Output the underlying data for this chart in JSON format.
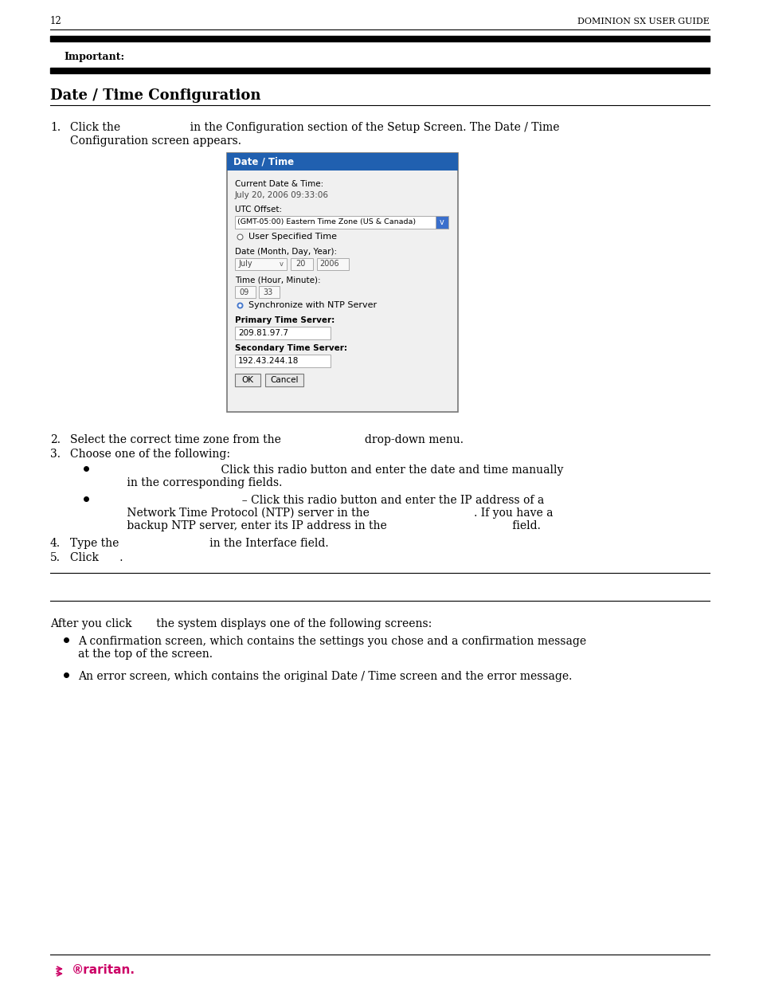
{
  "page_number": "12",
  "header_right": "DOMINION SX USER GUIDE",
  "important_label": "Important:",
  "section_title": "Date / Time Configuration",
  "step1_line1": "Click the                    in the Configuration section of the Setup Screen. The Date / Time",
  "step1_line2": "Configuration screen appears.",
  "dialog_title": "Date / Time",
  "dialog_title_bg": "#2060b0",
  "dialog_title_color": "#ffffff",
  "current_date_label": "Current Date & Time:",
  "current_date_value": "July 20, 2006 09:33:06",
  "utc_label": "UTC Offset:",
  "utc_value": "(GMT-05:00) Eastern Time Zone (US & Canada)",
  "radio1_label": "User Specified Time",
  "date_label": "Date (Month, Day, Year):",
  "date_month": "July",
  "date_day": "20",
  "date_year": "2006",
  "time_label": "Time (Hour, Minute):",
  "time_hour": "09",
  "time_minute": "33",
  "radio2_label": "Synchronize with NTP Server",
  "primary_label": "Primary Time Server:",
  "primary_value": "209.81.97.7",
  "secondary_label": "Secondary Time Server:",
  "secondary_value": "192.43.244.18",
  "btn_ok": "OK",
  "btn_cancel": "Cancel",
  "step2_text": "Select the correct time zone from the                        drop-down menu.",
  "step3_text": "Choose one of the following:",
  "bullet1_line1": "                                    Click this radio button and enter the date and time manually",
  "bullet1_line2": "         in the corresponding fields.",
  "bullet2_line1": "                                          – Click this radio button and enter the IP address of a",
  "bullet2_line2": "         Network Time Protocol (NTP) server in the                              . If you have a",
  "bullet2_line3": "         backup NTP server, enter its IP address in the                                    field.",
  "step4_text": "Type the                          in the Interface field.",
  "step5_text": "Click      .",
  "after_text": "After you click       the system displays one of the following screens:",
  "after_bullet1_line1": "A confirmation screen, which contains the settings you chose and a confirmation message",
  "after_bullet1_line2": "at the top of the screen.",
  "after_bullet2": "An error screen, which contains the original Date / Time screen and the error message.",
  "bg_color": "#ffffff",
  "text_color": "#000000",
  "line_color": "#000000",
  "dialog_bg": "#f0f0f0",
  "raritan_color": "#cc0066"
}
